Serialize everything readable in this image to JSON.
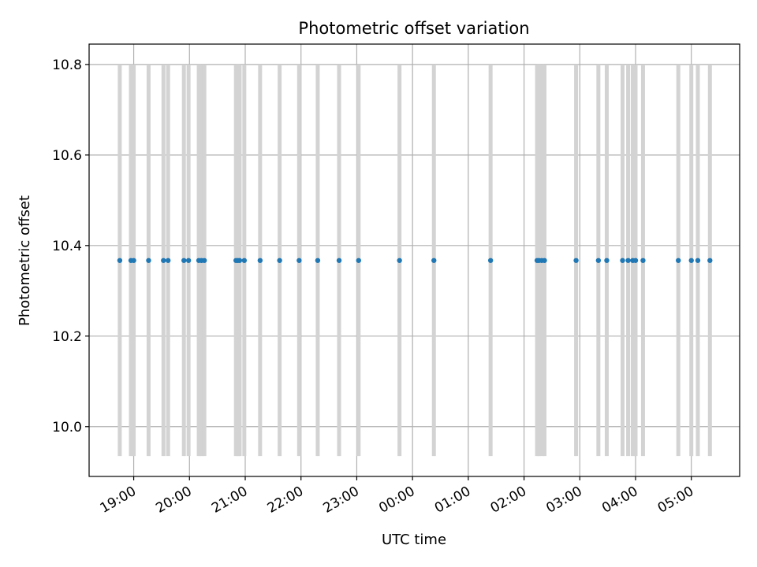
{
  "chart_data": {
    "type": "scatter",
    "title": "Photometric offset variation",
    "xlabel": "UTC time",
    "ylabel": "Photometric offset",
    "x_unit": "UTC datetime",
    "grid": true,
    "legend": "none",
    "x_range": [
      "2023-01-01T18:12",
      "2023-01-02T05:52"
    ],
    "ylim": [
      9.89,
      10.845
    ],
    "x_ticks": [
      {
        "t": "2023-01-01T19:00",
        "label": "19:00"
      },
      {
        "t": "2023-01-01T20:00",
        "label": "20:00"
      },
      {
        "t": "2023-01-01T21:00",
        "label": "21:00"
      },
      {
        "t": "2023-01-01T22:00",
        "label": "22:00"
      },
      {
        "t": "2023-01-01T23:00",
        "label": "23:00"
      },
      {
        "t": "2023-01-02T00:00",
        "label": "00:00"
      },
      {
        "t": "2023-01-02T01:00",
        "label": "01:00"
      },
      {
        "t": "2023-01-02T02:00",
        "label": "02:00"
      },
      {
        "t": "2023-01-02T03:00",
        "label": "03:00"
      },
      {
        "t": "2023-01-02T04:00",
        "label": "04:00"
      },
      {
        "t": "2023-01-02T05:00",
        "label": "05:00"
      }
    ],
    "y_ticks": [
      {
        "v": 10.0,
        "label": "10.0"
      },
      {
        "v": 10.2,
        "label": "10.2"
      },
      {
        "v": 10.4,
        "label": "10.4"
      },
      {
        "v": 10.6,
        "label": "10.6"
      },
      {
        "v": 10.8,
        "label": "10.8"
      }
    ],
    "error_range": [
      9.935,
      10.8
    ],
    "series": [
      {
        "color": "#1f77b4",
        "error_color": "#d3d3d3",
        "y": 10.367,
        "x": [
          "2023-01-01T18:45",
          "2023-01-01T18:57",
          "2023-01-01T19:00",
          "2023-01-01T19:16",
          "2023-01-01T19:32",
          "2023-01-01T19:37",
          "2023-01-01T19:54",
          "2023-01-01T19:59",
          "2023-01-01T20:10",
          "2023-01-01T20:13",
          "2023-01-01T20:16",
          "2023-01-01T20:50",
          "2023-01-01T20:52",
          "2023-01-01T20:54",
          "2023-01-01T20:59",
          "2023-01-01T21:16",
          "2023-01-01T21:37",
          "2023-01-01T21:58",
          "2023-01-01T22:18",
          "2023-01-01T22:41",
          "2023-01-01T23:02",
          "2023-01-01T23:46",
          "2023-01-02T00:23",
          "2023-01-02T01:24",
          "2023-01-02T02:14",
          "2023-01-02T02:16",
          "2023-01-02T02:19",
          "2023-01-02T02:22",
          "2023-01-02T02:56",
          "2023-01-02T03:20",
          "2023-01-02T03:29",
          "2023-01-02T03:46",
          "2023-01-02T03:52",
          "2023-01-02T03:57",
          "2023-01-02T04:00",
          "2023-01-02T04:08",
          "2023-01-02T04:46",
          "2023-01-02T05:00",
          "2023-01-02T05:07",
          "2023-01-02T05:20"
        ]
      }
    ]
  }
}
